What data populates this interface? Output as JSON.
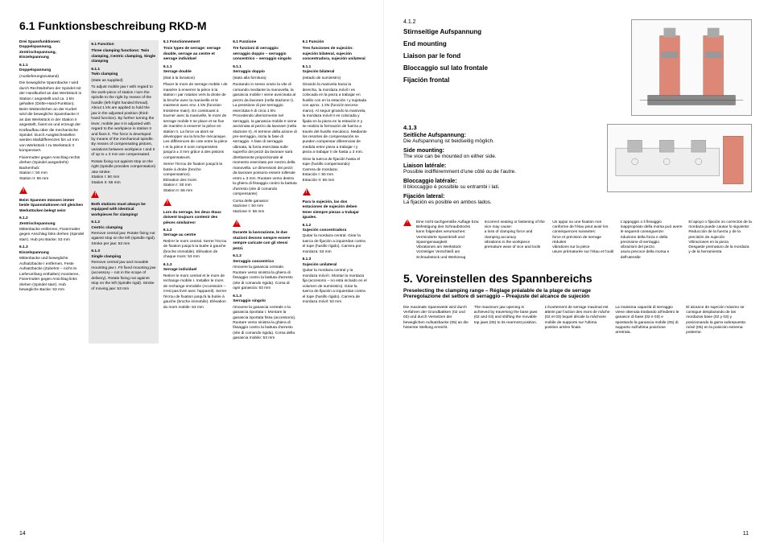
{
  "left": {
    "title": "6.1 Funktionsbeschreibung RKD-M",
    "page_num": "14",
    "columns": [
      {
        "header_sec": "",
        "header_title": "Drei Spannfunktionen: Doppelspannung, Zentrischspannung, Einzelspannung",
        "s1_num": "6.1.1",
        "s1_title": "Doppelspannung",
        "s1_sub": "(Auslieferungszustand)",
        "s1_body": "Die bewegliche Spannbacke I wird durch Rechtsdrehen der Spindel mit der Handkurbel an das Werkstück in Station I angestellt und ca. 1 kN gehalten (Dritte-Hand-Funktion). Beim Weiterdrehen an der Kurbel wird die bewegliche Spannbacke II an das Werkstück in der Station II angestellt, fixiert es und erzeugt der Kraftaufbau über die mechanische Spindel. Durch Ausgleichsstellen werden Maßdifferenzen bis ±3 mm von Werkstück I zu Werkstück II kompensiert.",
        "s1_tail": "Fixiermutter gegen Anschlag rechts drehen (Spindel ausgedreht)\nBackenhub:\nStation I: 50 mm\nStation II: 56 mm",
        "warn": "Beim Spannen müssen immer beide Spannstationen mit gleichen Werkstücken belegt sein!",
        "s2_num": "6.1.2",
        "s2_title": "Zentrischspannung",
        "s2_body": "Mittenbacke entfernen, Fixiermutter gegen Anschlag links drehen (Spindel starr). Hub pro Backe: 53 mm",
        "s3_num": "6.1.3",
        "s3_title": "Einzelspannung",
        "s3_body": "Mittenbacke und bewegliche Aufsatzbacke I entfernen, Feste Aufsatzbacke (Zubehör – nicht im Lieferumfang enthalten) montieren, Fixiermutter gegen Anschlag links drehen (Spindel starr). Hub bewegliche Backe: 53 mm"
      },
      {
        "header_sec": "6.1 Function",
        "header_title": "Three clamping functions: Twin clamping, Centric clamping, Single clamping",
        "s1_num": "6.1.1",
        "s1_title": "Twin clamping",
        "s1_sub": "(state as supplied)",
        "s1_body": "To adjust mobile jaw I with regard to the work-piece of station I turn the spindle to the right by means of the handle (left-/right handed thread). About 1 kN are applied to hold the jaw in the adjusted position (third-hand function). By further turning the lever, mobile jaw II is adjusted with regard to the workpiece in station II and fixes it. The force is developed by means of the mechanical spindle. By means of compensating pistons, variations between workpiece I and II of up to ± 3 mm are compensated.",
        "s1_tail": "Rotate fixing nut against stop on the right (spindle provides compensation)\nJaw stroke:\nStation I: 50 mm\nStation II: 56 mm",
        "warn": "Both stations must always be equipped with identical workpieces for clamping!",
        "s2_num": "6.1.2",
        "s2_title": "Centric clamping",
        "s2_body": "Remove central jaw. Rotate fixing nut against stop on the left (spindle rigid). Stroke per jaw: 53 mm",
        "s3_num": "6.1.3",
        "s3_title": "Single clamping",
        "s3_body": "Remove central jaw and movable mounting jaw I. Fit fixed mounting jaw (accessory – not in the scope of delivery). Rotate fixing nut against stop on the left (spindle rigid). Stroke of moving jaw: 53 mm"
      },
      {
        "header_sec": "6.1 Fonctionnement",
        "header_title": "Trois types de serrage: serrage double, serrage au centre et serrage individuel",
        "s1_num": "6.1.1",
        "s1_title": "Serrage double",
        "s1_sub": "(état à la livraison)",
        "s1_body": "Placer le mors de serrage mobile I de manière à enserrer la pièce à la station I par rotation vers la droite de la broche avec la manivelle et le maintenir avec env. 1 kN (fonction troisième main). En continuant à tourner avec la manivelle, le mors de serrage mobile II se place et se fixe de manière à enserrer la pièce en station II. La force va alors se développer via la broche mécanique. Les différences de cote entre la pièce I et la pièce II sont compensées jusqu'à ± 3 mm grâce à des pistons compensateurs.",
        "s1_tail": "Serrer l'écrou de fixation jusqu'à la butée à droite (broche compensatrice).\nElévation des mors:\nStation I: 50 mm\nStation II: 56 mm",
        "warn": "Lors du serrage, les deux étaux doivent toujours contenir des pièces similaires!",
        "s2_num": "6.1.2",
        "s2_title": "Serrage au centre",
        "s2_body": "Retirer le mors central. Serrer l'écrou de fixation jusqu'à la butée à gauche (broche immobile). Elévation de chaque mors: 53 mm",
        "s3_num": "6.1.3",
        "s3_title": "Serrage individuel",
        "s3_body": "Retirer le mors central et le mors de rechange mobile I. Installer le mors de rechange immobile (Accessoire – n'est pas livré avec l'appareil). Serrer l'écrou de fixation jusqu'à la butée à gauche (broche immobile). Elévation du mors mobile: 53 mm"
      },
      {
        "header_sec": "6.1 Funzione",
        "header_title": "Tre funzioni di serraggio: serraggio doppio – serraggio concentrico – serraggio singolo",
        "s1_num": "6.1.1",
        "s1_title": "Serraggio doppio",
        "s1_sub": "(stato alla fornitura)",
        "s1_body": "Ruotando in senso orario la vite di comando mediante la manovella, la ganascia mobile I viene avvicinata al pezzo da lavorare (nella stazione I). La pressione di pre-serraggio esercitata è di circa 1 kN. Procedendo ulteriormente nel serraggio, la ganascia mobile II viene avvicinata al pezzo da lavorare (nella stazione II). Al termine della azione di pre-serraggio, inizia la fase di serraggio. A fase di serraggio ultimata, la forza esercitata sulle superfici dei pezzi da lavorare sarà direttamente proporzionale al momento esercitato per mezzo della manovella. Le dimensioni dei pezzi da lavorare possono essere tollerate entro ± 3 mm. Ruotare verso destra la ghiera di fissaggio contro la battuta d'arresto (vite di comando compensante)",
        "s1_tail": "Corsa delle ganasce:\nstazione I: 50 mm\nstazione II: 56 mm",
        "warn": "Durante la lavorazione, le due stazioni devono sempre essere sempre caricate con gli stessi pezzi.",
        "s2_num": "6.1.2",
        "s2_title": "Serraggio concentrico",
        "s2_body": "rimovere la ganascia centrale. Ruotare verso sinistra la ghiera di fissaggio contro la battuta d'arresto (vite di comando rigida). Corsa di ogni ganascia: 53 mm",
        "s3_num": "6.1.3",
        "s3_title": "Serraggio singolo",
        "s3_body": "rimovere la ganascia centrale e la ganascia riportata I. Montare la ganascia riportata fissa (accessorio). Ruotare verso sinistra la ghiera di fissaggio contro la battuta d'arresto (vite di comando rigida). Corsa della ganascia mobile: 53 mm"
      },
      {
        "header_sec": "6.1 Función",
        "header_title": "Tres funciones de sujeción: sujeción bilateral, sujeción concentradora, sujeción unilateral",
        "s1_num": "6.1.1",
        "s1_title": "Sujeción bilateral",
        "s1_sub": "(estado de suministro)",
        "s1_body": "Girando la manivela hacia la derecha, la mordaza móvil I es colocada en la pieza a trabajar en husillo con en la estación I y sujetada con aprox. 1 kN (función tercera-mano). Al seguir girando la manivela, la mordaza móvil II es colocada y fijada en la pieza en la estación II y se realiza la formación de fuerza a través del husillo mecánico. Mediante los resortes de compensación se pueden compensar diferencias de medida entre pieza a trabajar I y pieza a trabajar II de hasta ± 3 mm.",
        "s1_tail": "Girar la tuerca de fijación hasta el tope (husillo compensando)\nCarrera de mordaza:\nEstación I: 50 mm\nEstación II: 56 mm",
        "warn": "Para la sujeción, las dos estaciones de sujeción deben tener siempre piezas a trabajar iguales.",
        "s2_num": "6.1.2",
        "s2_title": "Sujeción concentradora",
        "s2_body": "Quitar la mordaza central. Girar la tuerca de fijación a izquierdas contra el tope (husillo rígido). Carrera por mordaza: 53 mm",
        "s3_num": "6.1.3",
        "s3_title": "Sujeción unilateral",
        "s3_body": "Quitar la mordaza central y la mordaza móvil I. Montar la mordaza fija (accesorio – no está incluido en el volumen de suministro). Girar la tuerca de fijación a izquierdas contra el tope (husillo rígido). Carrera de mordaza móvil: 53 mm"
      }
    ]
  },
  "right": {
    "page_num": "11",
    "sec412": "4.1.2",
    "labels412": [
      "Stirnseitige Aufspannung",
      "End mounting",
      "Liaison par le fond",
      "Bloccaggio sul lato frontale",
      "Fijación frontal"
    ],
    "sec413": "4.1.3",
    "items413": [
      {
        "h": "Seitliche Aufspannung:",
        "t": "Die Aufspannung ist beidseitig möglich."
      },
      {
        "h": "Side mounting:",
        "t": "The vice can be mounted on either side."
      },
      {
        "h": "Liaison latérale:",
        "t": "Possible indifféremment d'une côté ou de l'autre."
      },
      {
        "h": "Bloccaggio latérale:",
        "t": "Il bloccaggio è possibile su entrambi i lati."
      },
      {
        "h": "Fijación lateral:",
        "t": "La fijación es posible en ambos lados."
      }
    ],
    "warn5": [
      "Eine nicht sachgemäße Auflage bzw. Befestigung des Schraubstocks kann folgendes verursachen:\nVerminderte Spannkraft und Spanngenauigkeit\nVibrationen am Werkstück\nVorzeitiger Verschleiß am Schraubstock und Werkzeug",
      "Incorrect seating or fastening of the vice may cause:\na loss of clamping force and clamping accuracy\nvibrations in the workpiece\npremature wear of vice and tools",
      "Un appui ou une fixation non conforme de l'étau peut avoir les conséquences suivantes:\nforce et précision de serrage réduites\nvibrations sur la pièce\nusure prématurée sur l'étau et l'outil",
      "L'appoggio o il fissaggio inappropriato della morsa può avere le seguenti conseguenze:\nriduzione della forza e della precisione di serraggio\nvibrazioni del pezzo\nusura precoce della morsa e dell'utensile",
      "El apoyo o fijación no correctos de la mordaza puede causar lo siguiente:\nReducción de la fuerza y de la precisión de sujeción\nVibraciones en la pieza\nDesgaste prematuro de la mordaza y de la herramienta"
    ],
    "sec5_title": "5. Voreinstellen des Spannbereichs",
    "sec5_sub": "Preselecting the clamping range – Réglage préalable de la plage de serrage\nPreregolazione del settore di serraggio – Preajuste del alcance de sujeción",
    "sec5_cols": [
      "Die maximale Spannweite wird durch Verfahren der Grundbakken (02 und 03) und durch Versetzen der beweglichen Aufsatzbacke (05) an die hinterste Stellung erreicht.",
      "The maximum jaw opening is achieved by traversing the base jaws (02 and 03) and shifting the movable top jaws (05) to its rearmost position.",
      "L'écartement de serrage maximal est atteint par l'action des mors de mâche (02 et 03) lequel décale la mâchoire mobile de supports sur l'ultima position arrière finale.",
      "La massima capacità di serraggio viene ottenuta traslando all'indietro le ganasce di base (02 e 03) e spostando la ganascia mobile (05) di supporto sull'ultima posizione arretrata.",
      "El alcance de sujeción máximo se consigue desplazando de las mordazas base (02 y 03) y posicionando la garra subrepuesta móvil (05) en la posición extrema posterior."
    ]
  }
}
